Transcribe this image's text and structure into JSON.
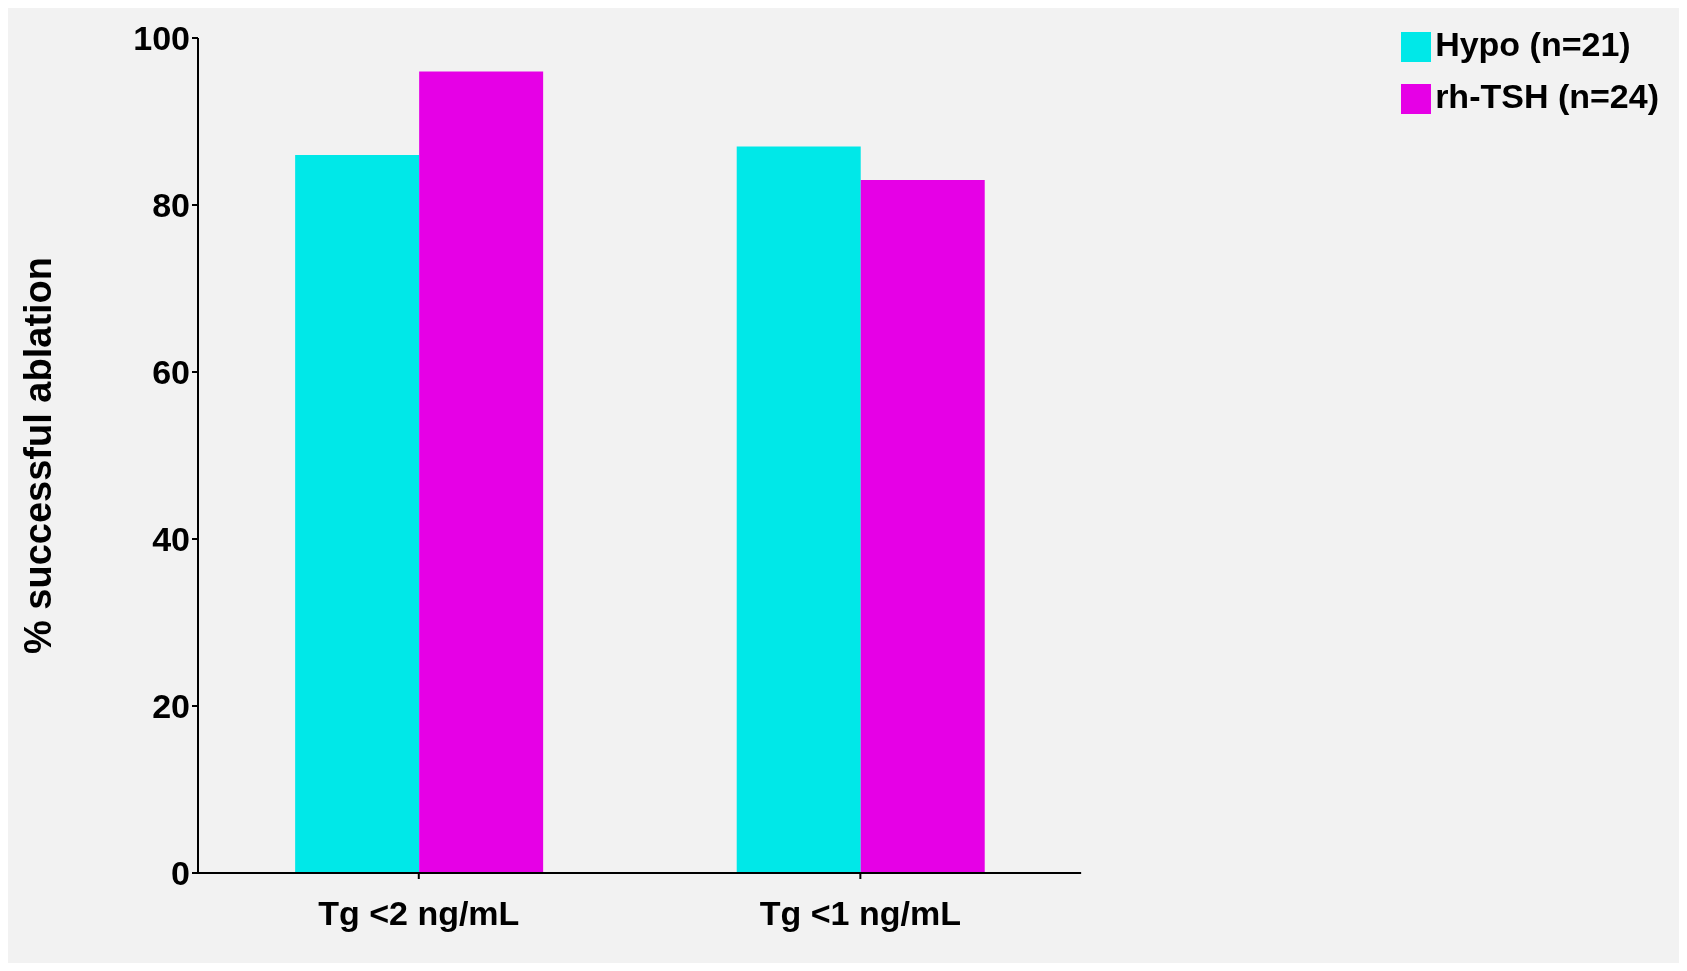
{
  "chart_data": {
    "type": "bar",
    "ylabel": "% successful ablation",
    "categories": [
      "Tg <2 ng/mL",
      "Tg <1 ng/mL"
    ],
    "series": [
      {
        "name": "Hypo (n=21)",
        "color": "#00e8e8",
        "values": [
          86,
          87
        ]
      },
      {
        "name": "rh-TSH (n=24)",
        "color": "#e600e6",
        "values": [
          96,
          83
        ]
      }
    ],
    "ylim": [
      0,
      100
    ],
    "yticks": [
      0,
      20,
      40,
      60,
      80,
      100
    ],
    "grid": false,
    "legend": "top right"
  }
}
